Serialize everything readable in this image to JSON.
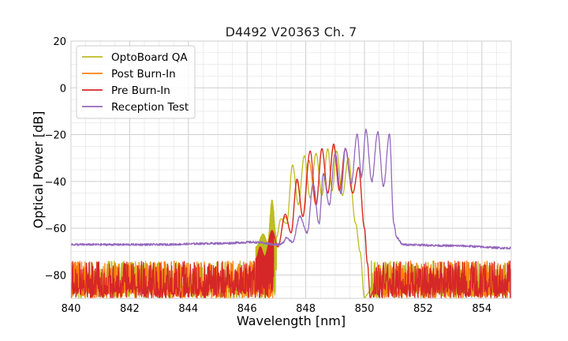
{
  "chart_data": {
    "type": "line",
    "title": "D4492 V20363 Ch. 7",
    "xlabel": "Wavelength [nm]",
    "ylabel": "Optical Power [dB]",
    "xlim": [
      840,
      855
    ],
    "ylim": [
      -90,
      20
    ],
    "x_ticks": [
      840,
      842,
      844,
      846,
      848,
      850,
      852,
      854
    ],
    "y_ticks": [
      20,
      0,
      -20,
      -40,
      -60,
      -80
    ],
    "x_tick_labels": [
      "840",
      "842",
      "844",
      "846",
      "848",
      "850",
      "852",
      "854"
    ],
    "y_tick_labels": [
      "20",
      "0",
      "−20",
      "−40",
      "−60",
      "−80"
    ],
    "grid": true,
    "legend_position": "top-left",
    "series": [
      {
        "name": "OptoBoard QA",
        "color": "#bcbd22",
        "noise_floor": [
          -90,
          -76
        ],
        "noise_range": [
          840,
          847.0
        ],
        "noise_range_2": [
          850.2,
          855
        ],
        "peaks": [
          [
            846.55,
            -62.5
          ],
          [
            846.85,
            -48
          ],
          [
            847.15,
            -56
          ],
          [
            847.55,
            -33
          ],
          [
            847.95,
            -29
          ],
          [
            848.35,
            -28
          ],
          [
            848.75,
            -26
          ],
          [
            849.05,
            -27
          ],
          [
            849.45,
            -30
          ]
        ],
        "valleys": [
          [
            846.7,
            -66
          ],
          [
            847.0,
            -64
          ],
          [
            847.35,
            -58
          ],
          [
            847.75,
            -50
          ],
          [
            848.15,
            -47
          ],
          [
            848.55,
            -46
          ],
          [
            848.9,
            -44
          ],
          [
            849.25,
            -46
          ]
        ],
        "edges": [
          [
            846.3,
            -68
          ],
          [
            849.7,
            -58
          ],
          [
            849.85,
            -70
          ],
          [
            850.0,
            -90
          ]
        ]
      },
      {
        "name": "Post Burn-In",
        "color": "#ff7f0e",
        "noise_floor": [
          -90,
          -76
        ],
        "noise_range": [
          840,
          846.9
        ],
        "noise_range_2": [
          850.3,
          855
        ],
        "peaks": [
          [
            846.45,
            -68
          ],
          [
            846.85,
            -62
          ],
          [
            847.3,
            -55
          ],
          [
            847.7,
            -40
          ],
          [
            848.1,
            -31
          ],
          [
            848.55,
            -26
          ],
          [
            848.95,
            -25
          ],
          [
            849.35,
            -26
          ],
          [
            849.8,
            -34
          ]
        ],
        "valleys": [
          [
            846.6,
            -72
          ],
          [
            847.05,
            -68
          ],
          [
            847.5,
            -62
          ],
          [
            847.9,
            -55
          ],
          [
            848.35,
            -50
          ],
          [
            848.75,
            -45
          ],
          [
            849.15,
            -44
          ],
          [
            849.6,
            -45
          ]
        ],
        "edges": [
          [
            846.3,
            -73
          ],
          [
            850.0,
            -60
          ],
          [
            850.1,
            -75
          ],
          [
            850.2,
            -90
          ]
        ]
      },
      {
        "name": "Pre Burn-In",
        "color": "#d62728",
        "noise_floor": [
          -90,
          -76
        ],
        "noise_range": [
          840,
          846.9
        ],
        "noise_range_2": [
          850.3,
          855
        ],
        "peaks": [
          [
            846.45,
            -68
          ],
          [
            846.85,
            -61
          ],
          [
            847.3,
            -54
          ],
          [
            847.7,
            -39
          ],
          [
            848.15,
            -27
          ],
          [
            848.55,
            -26
          ],
          [
            848.95,
            -24
          ],
          [
            849.35,
            -26
          ],
          [
            849.8,
            -34
          ]
        ],
        "valleys": [
          [
            846.6,
            -72
          ],
          [
            847.05,
            -68
          ],
          [
            847.5,
            -62
          ],
          [
            847.9,
            -55
          ],
          [
            848.35,
            -50
          ],
          [
            848.75,
            -45
          ],
          [
            849.15,
            -44
          ],
          [
            849.6,
            -45
          ]
        ],
        "edges": [
          [
            846.3,
            -73
          ],
          [
            850.0,
            -60
          ],
          [
            850.1,
            -75
          ],
          [
            850.2,
            -90
          ]
        ]
      },
      {
        "name": "Reception Test",
        "color": "#9467bd",
        "baseline": [
          [
            840,
            -67
          ],
          [
            843,
            -67
          ],
          [
            845,
            -66.5
          ],
          [
            846.2,
            -66
          ],
          [
            847.2,
            -66.5
          ],
          [
            851.1,
            -64
          ],
          [
            851.3,
            -67
          ],
          [
            853,
            -67.5
          ],
          [
            855,
            -68.5
          ]
        ],
        "peaks": [
          [
            847.35,
            -64
          ],
          [
            847.8,
            -55
          ],
          [
            848.25,
            -41
          ],
          [
            848.6,
            -37
          ],
          [
            849.0,
            -28
          ],
          [
            849.35,
            -26
          ],
          [
            849.75,
            -20
          ],
          [
            850.05,
            -18
          ],
          [
            850.45,
            -19
          ],
          [
            850.85,
            -20
          ]
        ],
        "valleys": [
          [
            847.55,
            -66
          ],
          [
            848.05,
            -62
          ],
          [
            848.45,
            -58
          ],
          [
            848.8,
            -50
          ],
          [
            849.2,
            -45
          ],
          [
            849.55,
            -41
          ],
          [
            849.9,
            -38
          ],
          [
            850.25,
            -40
          ],
          [
            850.65,
            -42
          ]
        ],
        "edges": [
          [
            847.1,
            -67
          ],
          [
            851.0,
            -58
          ],
          [
            851.1,
            -64
          ]
        ]
      }
    ]
  }
}
